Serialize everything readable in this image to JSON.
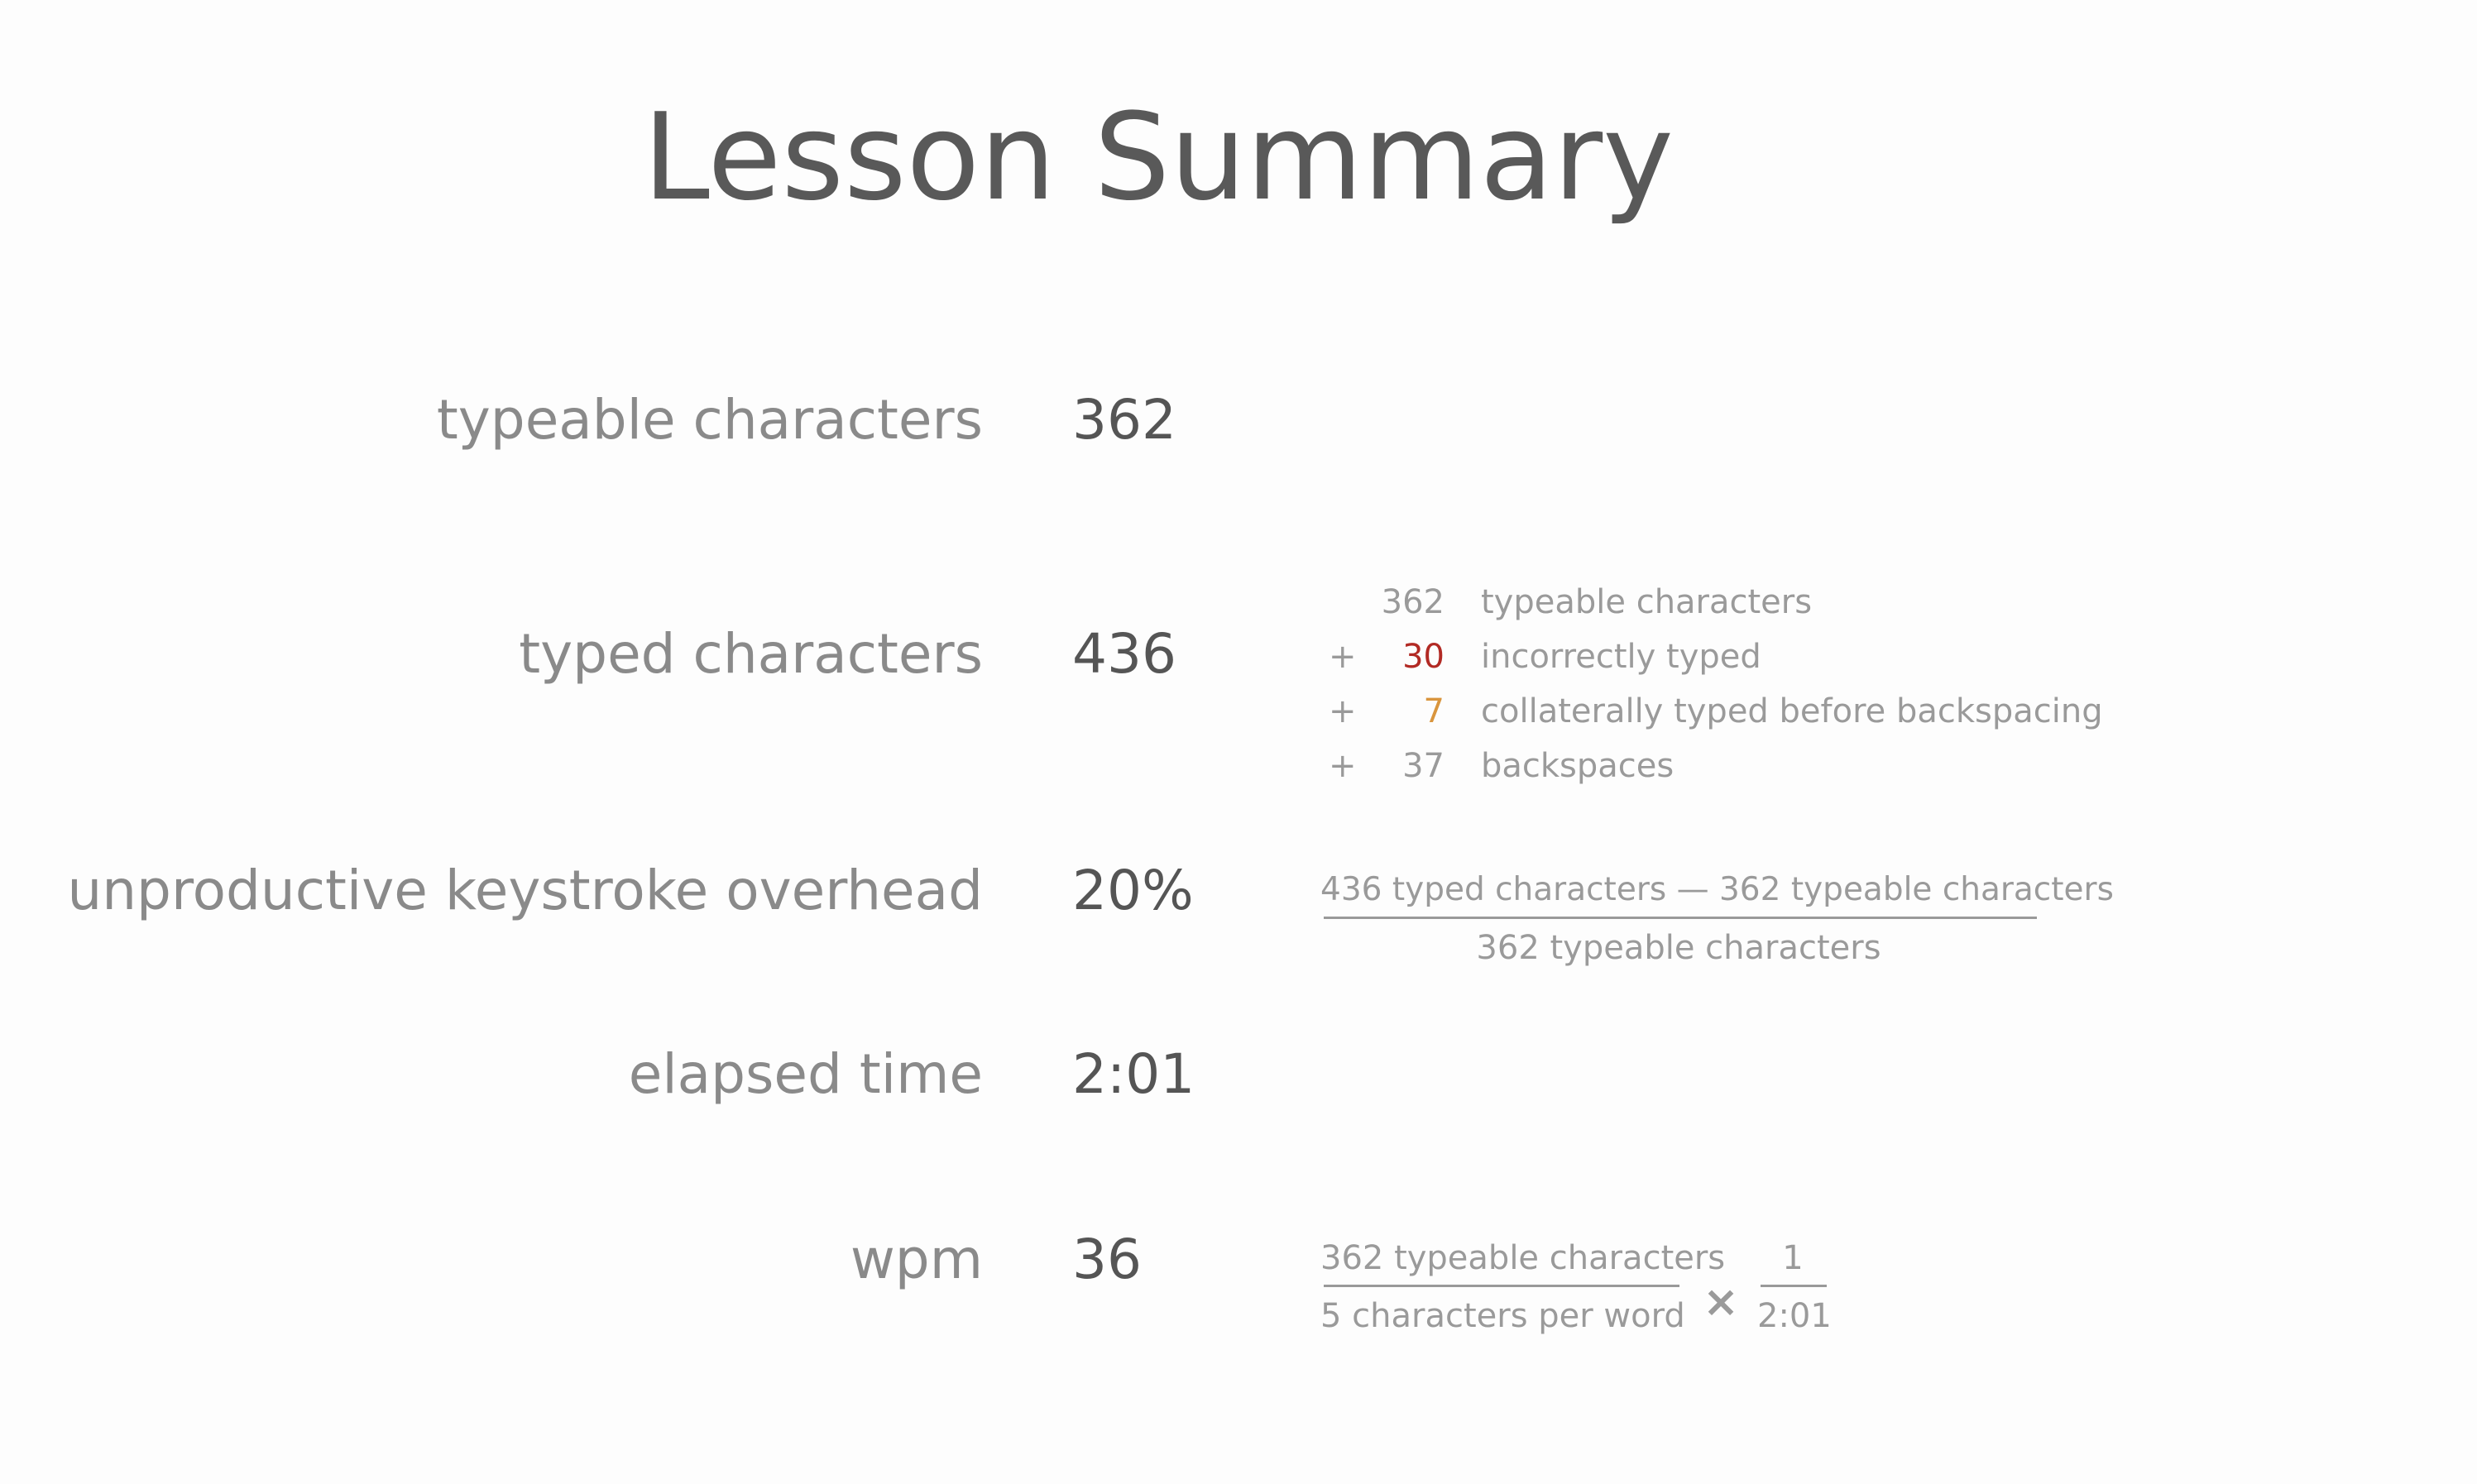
{
  "title": "Lesson Summary",
  "stats": {
    "typeable": {
      "label": "typeable characters",
      "value": "362"
    },
    "typed": {
      "label": "typed characters",
      "value": "436"
    },
    "overhead": {
      "label": "unproductive keystroke overhead",
      "value": "20%"
    },
    "elapsed": {
      "label": "elapsed time",
      "value": "2:01"
    },
    "wpm": {
      "label": "wpm",
      "value": "36"
    }
  },
  "typed_breakdown": [
    {
      "op": "",
      "number": "362",
      "text": "typeable characters",
      "color": "#9a9a9a"
    },
    {
      "op": "+",
      "number": "30",
      "text": "incorrectly typed",
      "color": "#b22a24"
    },
    {
      "op": "+",
      "number": "7",
      "text": "collaterally typed before backspacing",
      "color": "#d9953d"
    },
    {
      "op": "+",
      "number": "37",
      "text": "backspaces",
      "color": "#9a9a9a"
    }
  ],
  "overhead_formula": {
    "numerator": "436 typed characters — 362 typeable characters",
    "denominator": "362 typeable characters"
  },
  "wpm_formula": {
    "left_numerator": "362 typeable characters",
    "left_denominator": "5 characters per word",
    "operator": "×",
    "right_numerator": "1",
    "right_denominator": "2:01"
  }
}
